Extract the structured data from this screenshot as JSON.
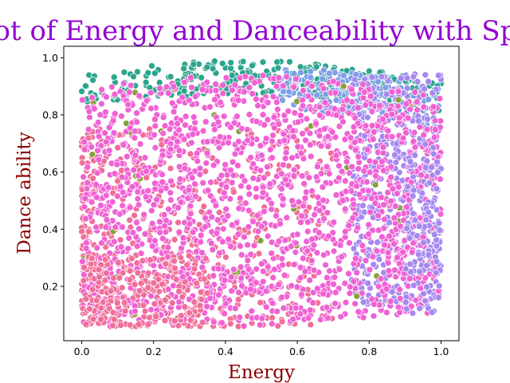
{
  "chart_data": {
    "type": "scatter",
    "title": "Scatter Plot of Energy and Danceability with Spotify Data",
    "xlabel": "Energy",
    "ylabel": "Dance ability",
    "xlim": [
      -0.05,
      1.05
    ],
    "ylim": [
      0.01,
      1.04
    ],
    "xticks": [
      "0.0",
      "0.2",
      "0.4",
      "0.6",
      "0.8",
      "1.0"
    ],
    "yticks": [
      "0.2",
      "0.4",
      "0.6",
      "0.8",
      "1.0"
    ],
    "grid": false,
    "legend": "none",
    "series_colors": [
      "#2ca58d",
      "#7e9ee6",
      "#a589f0",
      "#f06f9a",
      "#f062d4",
      "#8aa03a"
    ],
    "point_count_per_series": "dense (~thousands)",
    "x_range": [
      0.0,
      1.0
    ],
    "y_range": [
      0.06,
      0.99
    ]
  }
}
